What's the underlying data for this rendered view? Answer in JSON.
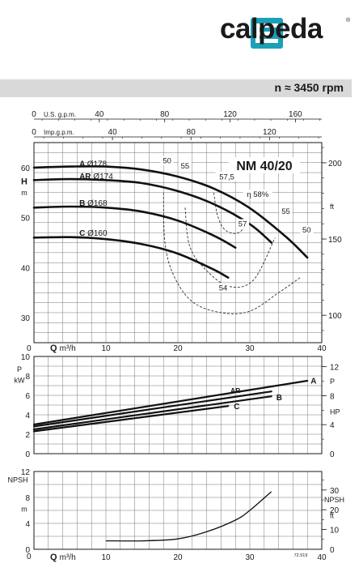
{
  "brand": {
    "name": "calpeda",
    "registered": "®",
    "accent_color": "#1aa1b8"
  },
  "header": {
    "speed": "n ≈ 3450 rpm"
  },
  "chart_data": [
    {
      "id": "head",
      "type": "line",
      "title": "NM 40/20",
      "ylabel": "H",
      "ylabel_unit": "m",
      "yright_unit": "ft",
      "xlim": [
        0,
        40
      ],
      "ylim": [
        25,
        65
      ],
      "top_axes": [
        {
          "label": "U.S. g.p.m.",
          "zero": "0",
          "ticks": [
            "40",
            "80",
            "120",
            "160"
          ],
          "values": [
            40,
            80,
            120,
            160
          ],
          "m3h_per_unit": 0.2271
        },
        {
          "label": "Imp.g.p.m.",
          "zero": "0",
          "ticks": [
            "40",
            "80",
            "120"
          ],
          "values": [
            40,
            80,
            120
          ],
          "m3h_per_unit": 0.2728
        }
      ],
      "y_ticks": [
        30,
        40,
        50,
        60
      ],
      "yright_ticks": [
        100,
        150,
        200
      ],
      "series": [
        {
          "label": "A",
          "diameter": "Ø178",
          "x": [
            0,
            5,
            10,
            15,
            20,
            25,
            30,
            35,
            38
          ],
          "y": [
            60,
            60.2,
            60.2,
            59.6,
            58.2,
            55.8,
            51.9,
            46.2,
            42
          ]
        },
        {
          "label": "AR",
          "diameter": "Ø174",
          "x": [
            0,
            5,
            10,
            15,
            20,
            25,
            30,
            33
          ],
          "y": [
            57.5,
            57.7,
            57.5,
            56.9,
            55.3,
            52.7,
            48.7,
            45
          ]
        },
        {
          "label": "B",
          "diameter": "Ø168",
          "x": [
            0,
            5,
            10,
            15,
            20,
            25,
            28
          ],
          "y": [
            52,
            52.2,
            52,
            51.2,
            49.4,
            46.4,
            44
          ]
        },
        {
          "label": "C",
          "diameter": "Ø160",
          "x": [
            0,
            5,
            10,
            15,
            20,
            25,
            27
          ],
          "y": [
            46,
            46.1,
            45.7,
            44.7,
            42.8,
            39.6,
            38
          ]
        }
      ],
      "efficiency_label": "η 58%",
      "efficiency_values": [
        "50",
        "55",
        "57,5",
        "57",
        "55",
        "50",
        "54"
      ],
      "efficiency_curves": [
        {
          "x": [
            18,
            18.2,
            19.4,
            22,
            26,
            30,
            34,
            37
          ],
          "y": [
            55,
            45,
            38.5,
            33.2,
            31,
            31.3,
            35,
            38
          ]
        },
        {
          "x": [
            21,
            21.6,
            23.6,
            27,
            30.5,
            33.5
          ],
          "y": [
            52,
            44.5,
            40,
            36.3,
            37.5,
            46
          ]
        },
        {
          "x": [
            25,
            25.5,
            26.6,
            28.5,
            30
          ],
          "y": [
            55,
            50.5,
            47.5,
            47,
            50
          ]
        }
      ]
    },
    {
      "id": "power",
      "type": "line",
      "ylabel": "P",
      "ylabel_unit": "kW",
      "yright_label": "P",
      "yright_unit": "HP",
      "xlabel": "Q",
      "xlabel_unit": "m³/h",
      "xlim": [
        0,
        40
      ],
      "ylim": [
        0,
        10
      ],
      "x_ticks": [
        10,
        20,
        30,
        40
      ],
      "y_ticks": [
        0,
        2,
        4,
        6,
        8,
        10
      ],
      "yright_ticks": [
        4,
        8,
        12
      ],
      "yright_extra": [
        "0"
      ],
      "series": [
        {
          "label": "A",
          "x": [
            0,
            38
          ],
          "y": [
            3.0,
            7.5
          ]
        },
        {
          "label": "AR",
          "x": [
            0,
            33
          ],
          "y": [
            2.8,
            6.4
          ]
        },
        {
          "label": "B",
          "x": [
            0,
            33
          ],
          "y": [
            2.5,
            5.9
          ]
        },
        {
          "label": "C",
          "x": [
            0,
            27
          ],
          "y": [
            2.3,
            4.9
          ]
        }
      ]
    },
    {
      "id": "npsh",
      "type": "line",
      "ylabel": "NPSH",
      "ylabel_unit": "m",
      "yright_label": "NPSH",
      "yright_unit": "ft",
      "xlabel": "Q",
      "xlabel_unit": "m³/h",
      "xlim": [
        0,
        40
      ],
      "ylim": [
        0,
        12
      ],
      "x_ticks": [
        10,
        20,
        30,
        40
      ],
      "y_ticks": [
        0,
        4,
        8,
        12
      ],
      "yright_ticks": [
        10,
        20,
        30
      ],
      "yright_extra": [
        "0"
      ],
      "series": [
        {
          "label": "NPSH",
          "x": [
            10,
            15,
            20,
            24,
            28,
            30,
            33
          ],
          "y": [
            1.3,
            1.3,
            1.6,
            2.7,
            4.5,
            6.0,
            8.9
          ]
        }
      ],
      "code": "72.519"
    }
  ]
}
